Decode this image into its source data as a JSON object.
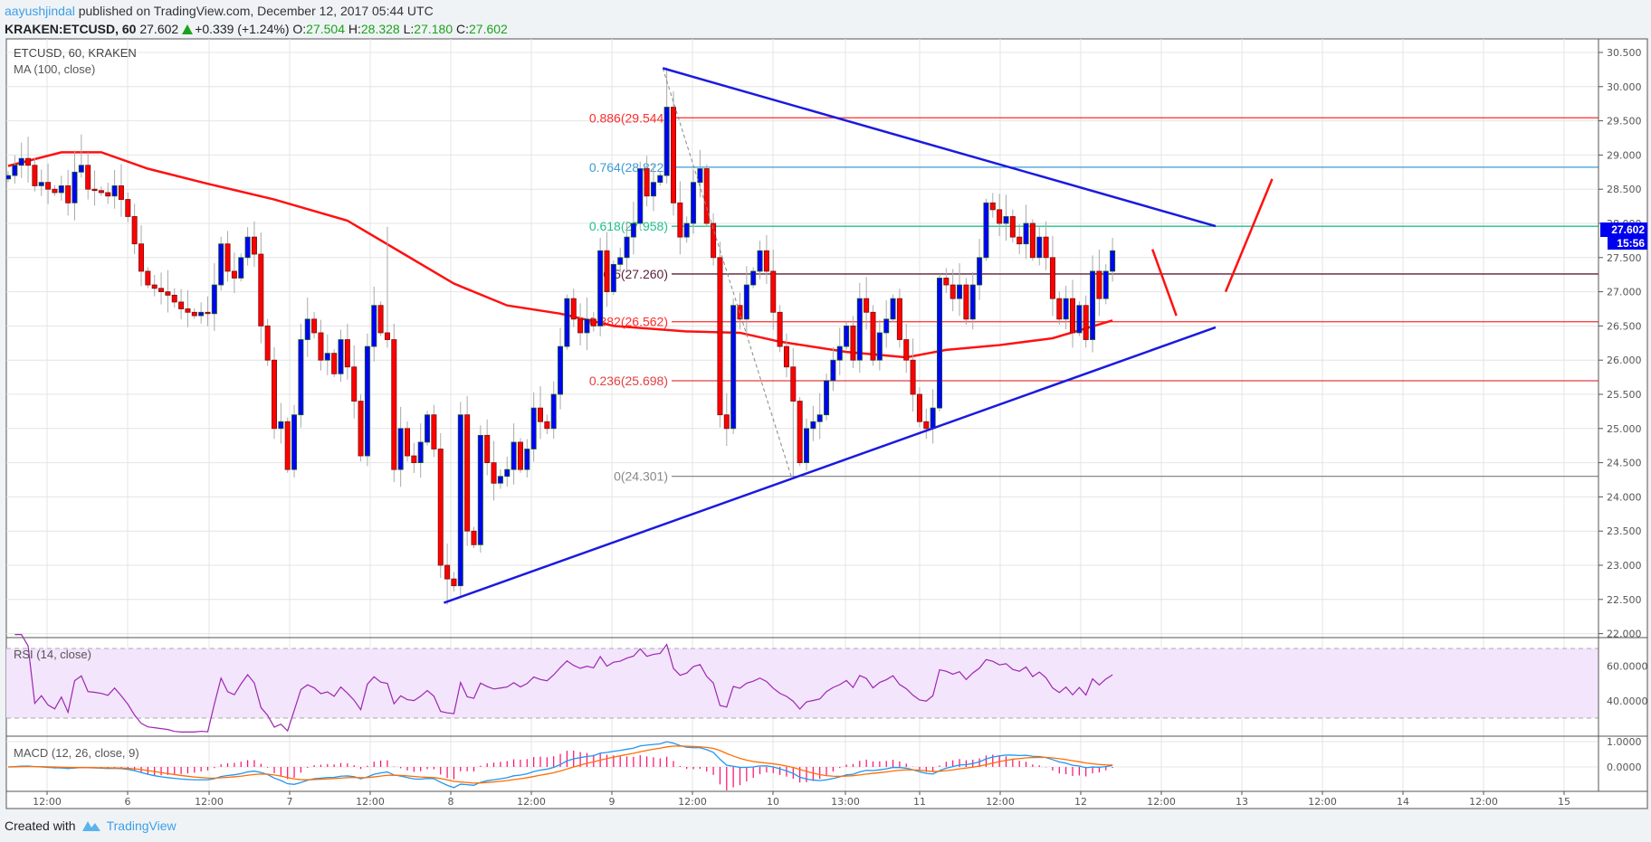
{
  "header": {
    "author": "aayushjindal",
    "published": " published on TradingView.com, December 12, 2017 05:44 UTC",
    "symbol": "KRAKEN:ETCUSD, 60",
    "last": "27.602",
    "change": "+0.339 (+1.24%)",
    "o_label": "O:",
    "o": "27.504",
    "h_label": "H:",
    "h": "28.328",
    "l_label": "L:",
    "l": "27.180",
    "c_label": "C:",
    "c": "27.602"
  },
  "legend": {
    "title": "ETCUSD, 60, KRAKEN",
    "ma": "MA (100, close)",
    "rsi": "RSI (14, close)",
    "macd": "MACD (12, 26, close, 9)"
  },
  "price_axis": [
    "30.500",
    "30.000",
    "29.500",
    "29.000",
    "28.500",
    "28.000",
    "27.500",
    "27.000",
    "26.500",
    "26.000",
    "25.500",
    "25.000",
    "24.500",
    "24.000",
    "23.500",
    "23.000",
    "22.500",
    "22.000"
  ],
  "rsi_axis": [
    "60.0000",
    "40.0000"
  ],
  "macd_axis": [
    "1.0000",
    "0.0000"
  ],
  "time_axis": [
    "12:00",
    "6",
    "12:00",
    "7",
    "12:00",
    "8",
    "12:00",
    "9",
    "12:00",
    "10",
    "13:00",
    "11",
    "12:00",
    "12",
    "12:00",
    "13",
    "12:00",
    "14",
    "12:00",
    "15"
  ],
  "current": {
    "price": "27.602",
    "countdown": "15:56"
  },
  "fib": [
    {
      "label": "0.886(29.544)",
      "price": 29.544,
      "color": "#ff2b2b"
    },
    {
      "label": "0.764(28.822)",
      "price": 28.822,
      "color": "#3d9bd6"
    },
    {
      "label": "0.618(27.958)",
      "price": 27.958,
      "color": "#22c08e"
    },
    {
      "label": "0.5(27.260)",
      "price": 27.26,
      "color": "#5a1f3a"
    },
    {
      "label": "0.382(26.562)",
      "price": 26.562,
      "color": "#ff2b2b"
    },
    {
      "label": "0.236(25.698)",
      "price": 25.698,
      "color": "#e04040"
    },
    {
      "label": "0(24.301)",
      "price": 24.301,
      "color": "#888888"
    }
  ],
  "chart_data": {
    "type": "candlestick",
    "interval": "60",
    "first_open": 28.65,
    "close": [
      28.7,
      28.85,
      28.95,
      28.85,
      28.55,
      28.6,
      28.5,
      28.45,
      28.55,
      28.3,
      28.75,
      28.85,
      28.5,
      28.48,
      28.45,
      28.4,
      28.55,
      28.35,
      28.1,
      27.7,
      27.3,
      27.1,
      27.05,
      27.0,
      26.95,
      26.85,
      26.75,
      26.7,
      26.65,
      26.7,
      26.68,
      27.1,
      27.7,
      27.3,
      27.2,
      27.5,
      27.8,
      27.55,
      26.5,
      26.0,
      25.0,
      25.1,
      24.4,
      25.2,
      26.3,
      26.6,
      26.4,
      26.0,
      26.1,
      25.8,
      26.3,
      25.9,
      25.4,
      24.6,
      26.2,
      26.8,
      26.4,
      26.3,
      24.4,
      25.0,
      24.6,
      24.5,
      24.8,
      25.2,
      24.7,
      23.0,
      22.8,
      22.7,
      25.2,
      23.5,
      23.3,
      24.9,
      24.5,
      24.2,
      24.3,
      24.4,
      24.8,
      24.4,
      24.7,
      25.3,
      25.1,
      25.0,
      25.5,
      26.2,
      26.9,
      26.6,
      26.4,
      26.6,
      26.5,
      27.6,
      27.0,
      27.4,
      27.5,
      27.8,
      28.0,
      28.8,
      28.4,
      28.6,
      28.7,
      29.7,
      28.3,
      27.8,
      28.0,
      28.6,
      28.8,
      28.0,
      27.5,
      25.2,
      25.0,
      26.8,
      26.6,
      27.1,
      27.3,
      27.6,
      27.3,
      26.7,
      26.2,
      25.9,
      25.4,
      24.5,
      25.0,
      25.1,
      25.2,
      25.7,
      26.0,
      26.2,
      26.5,
      26.0,
      26.9,
      26.7,
      26.0,
      26.4,
      26.6,
      26.9,
      26.3,
      26.0,
      25.5,
      25.1,
      25.0,
      25.3,
      27.2,
      27.1,
      26.9,
      27.1,
      26.6,
      27.1,
      27.5,
      28.3,
      28.2,
      28.0,
      28.1,
      27.8,
      27.7,
      28.0,
      27.5,
      27.8,
      27.5,
      26.9,
      26.6,
      26.9,
      26.4,
      26.8,
      26.3,
      27.3,
      26.9,
      27.3,
      27.6
    ],
    "high_overrides": {
      "99": 30.28,
      "57": 27.95,
      "11": 29.3
    },
    "low_overrides": {
      "66": 22.42,
      "118": 24.3
    },
    "ma100": [
      [
        0,
        28.84
      ],
      [
        8,
        29.04
      ],
      [
        14,
        29.04
      ],
      [
        21,
        28.8
      ],
      [
        30,
        28.58
      ],
      [
        40,
        28.35
      ],
      [
        51,
        28.04
      ],
      [
        59,
        27.58
      ],
      [
        67,
        27.12
      ],
      [
        75,
        26.8
      ],
      [
        83,
        26.68
      ],
      [
        91,
        26.5
      ],
      [
        102,
        26.42
      ],
      [
        110,
        26.4
      ],
      [
        116,
        26.27
      ],
      [
        126,
        26.12
      ],
      [
        135,
        26.04
      ],
      [
        141,
        26.15
      ],
      [
        149,
        26.22
      ],
      [
        157,
        26.32
      ],
      [
        166,
        26.58
      ]
    ],
    "ylim": [
      22.0,
      30.5
    ]
  },
  "drawings": {
    "resistance_line": [
      [
        98.4,
        30.27
      ],
      [
        181.5,
        27.96
      ]
    ],
    "support_line": [
      [
        65.5,
        22.45
      ],
      [
        181.5,
        26.48
      ]
    ],
    "fib_anchor_line": [
      [
        98.4,
        30.27
      ],
      [
        117.7,
        24.3
      ]
    ],
    "arrow_down": [
      [
        172,
        27.62
      ],
      [
        175.6,
        26.65
      ]
    ],
    "arrow_up": [
      [
        183,
        27.0
      ],
      [
        190,
        28.65
      ]
    ]
  },
  "colors": {
    "up": "#0000ff",
    "down": "#ff0000",
    "ma": "#ff1010",
    "trend": "#1a1adf",
    "rsi": "#9c27b0",
    "macd": "#2196f3",
    "signal": "#ff6d00",
    "hist": "#ff0a6c"
  },
  "footer": {
    "created": "Created with",
    "brand": "TradingView"
  }
}
